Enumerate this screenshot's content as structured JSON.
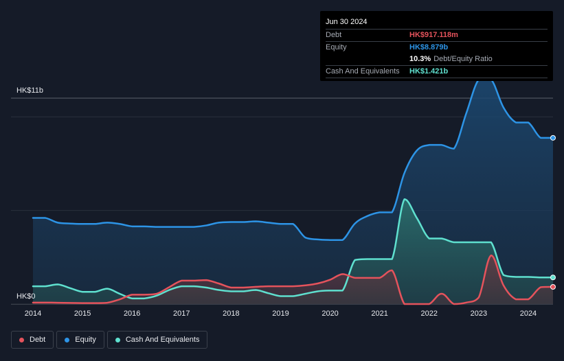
{
  "tooltip": {
    "date": "Jun 30 2024",
    "debt_label": "Debt",
    "debt_value": "HK$917.118m",
    "equity_label": "Equity",
    "equity_value": "HK$8.879b",
    "ratio_value": "10.3%",
    "ratio_label": "Debt/Equity Ratio",
    "cash_label": "Cash And Equivalents",
    "cash_value": "HK$1.421b"
  },
  "legend": {
    "debt": "Debt",
    "equity": "Equity",
    "cash": "Cash And Equivalents"
  },
  "colors": {
    "debt": "#e5535c",
    "equity": "#2d94e6",
    "cash": "#5fe0cf"
  },
  "chart_data": {
    "type": "area",
    "title": "",
    "xlabel": "",
    "ylabel": "",
    "y_top_label": "HK$11b",
    "y_bottom_label": "HK$0",
    "ylim": [
      0,
      11
    ],
    "xlim": [
      2014.0,
      2024.5
    ],
    "x_ticks": [
      "2014",
      "2015",
      "2016",
      "2017",
      "2018",
      "2019",
      "2020",
      "2021",
      "2022",
      "2023",
      "2024"
    ],
    "series": [
      {
        "name": "Equity",
        "x": [
          2014.0,
          2014.25,
          2014.5,
          2014.75,
          2015.0,
          2015.25,
          2015.5,
          2015.75,
          2016.0,
          2016.25,
          2016.5,
          2016.75,
          2017.0,
          2017.25,
          2017.5,
          2017.75,
          2018.0,
          2018.25,
          2018.5,
          2018.75,
          2019.0,
          2019.25,
          2019.5,
          2019.75,
          2020.0,
          2020.25,
          2020.5,
          2020.75,
          2021.0,
          2021.25,
          2021.5,
          2021.75,
          2022.0,
          2022.25,
          2022.5,
          2022.75,
          2023.0,
          2023.25,
          2023.5,
          2023.75,
          2024.0,
          2024.25,
          2024.5
        ],
        "values": [
          4.6,
          4.6,
          4.35,
          4.3,
          4.28,
          4.28,
          4.35,
          4.28,
          4.15,
          4.15,
          4.12,
          4.12,
          4.12,
          4.12,
          4.2,
          4.35,
          4.38,
          4.38,
          4.42,
          4.35,
          4.28,
          4.28,
          3.55,
          3.45,
          3.42,
          3.42,
          4.3,
          4.7,
          4.9,
          4.9,
          7.0,
          8.2,
          8.5,
          8.5,
          8.3,
          10.2,
          12.0,
          12.0,
          10.5,
          9.7,
          9.7,
          8.88,
          8.879
        ]
      },
      {
        "name": "Cash And Equivalents",
        "x": [
          2014.0,
          2014.25,
          2014.5,
          2014.75,
          2015.0,
          2015.25,
          2015.5,
          2015.75,
          2016.0,
          2016.25,
          2016.5,
          2016.75,
          2017.0,
          2017.25,
          2017.5,
          2017.75,
          2018.0,
          2018.25,
          2018.5,
          2018.75,
          2019.0,
          2019.25,
          2019.5,
          2019.75,
          2020.0,
          2020.25,
          2020.5,
          2020.75,
          2021.0,
          2021.25,
          2021.5,
          2021.75,
          2022.0,
          2022.25,
          2022.5,
          2022.75,
          2023.0,
          2023.25,
          2023.5,
          2023.75,
          2024.0,
          2024.25,
          2024.5
        ],
        "values": [
          0.95,
          0.95,
          1.05,
          0.85,
          0.65,
          0.65,
          0.82,
          0.55,
          0.3,
          0.3,
          0.45,
          0.75,
          0.95,
          0.95,
          0.88,
          0.75,
          0.68,
          0.68,
          0.75,
          0.58,
          0.42,
          0.42,
          0.55,
          0.68,
          0.72,
          0.72,
          2.35,
          2.4,
          2.4,
          2.4,
          5.6,
          4.6,
          3.5,
          3.5,
          3.3,
          3.3,
          3.3,
          3.3,
          1.55,
          1.45,
          1.45,
          1.42,
          1.421
        ]
      },
      {
        "name": "Debt",
        "x": [
          2014.0,
          2014.25,
          2014.5,
          2014.75,
          2015.0,
          2015.25,
          2015.5,
          2015.75,
          2016.0,
          2016.25,
          2016.5,
          2016.75,
          2017.0,
          2017.25,
          2017.5,
          2017.75,
          2018.0,
          2018.25,
          2018.5,
          2018.75,
          2019.0,
          2019.25,
          2019.5,
          2019.75,
          2020.0,
          2020.25,
          2020.5,
          2020.75,
          2021.0,
          2021.25,
          2021.5,
          2021.75,
          2022.0,
          2022.25,
          2022.5,
          2022.75,
          2023.0,
          2023.25,
          2023.5,
          2023.75,
          2024.0,
          2024.25,
          2024.5
        ],
        "values": [
          0.08,
          0.08,
          0.07,
          0.06,
          0.05,
          0.05,
          0.07,
          0.25,
          0.5,
          0.5,
          0.55,
          0.9,
          1.25,
          1.25,
          1.28,
          1.1,
          0.88,
          0.88,
          0.92,
          0.95,
          0.95,
          0.95,
          1.0,
          1.1,
          1.3,
          1.6,
          1.4,
          1.4,
          1.4,
          1.8,
          0.0,
          0.0,
          0.0,
          0.55,
          0.0,
          0.08,
          0.35,
          2.6,
          1.0,
          0.25,
          0.25,
          0.9,
          0.917
        ]
      }
    ],
    "grid": true
  }
}
